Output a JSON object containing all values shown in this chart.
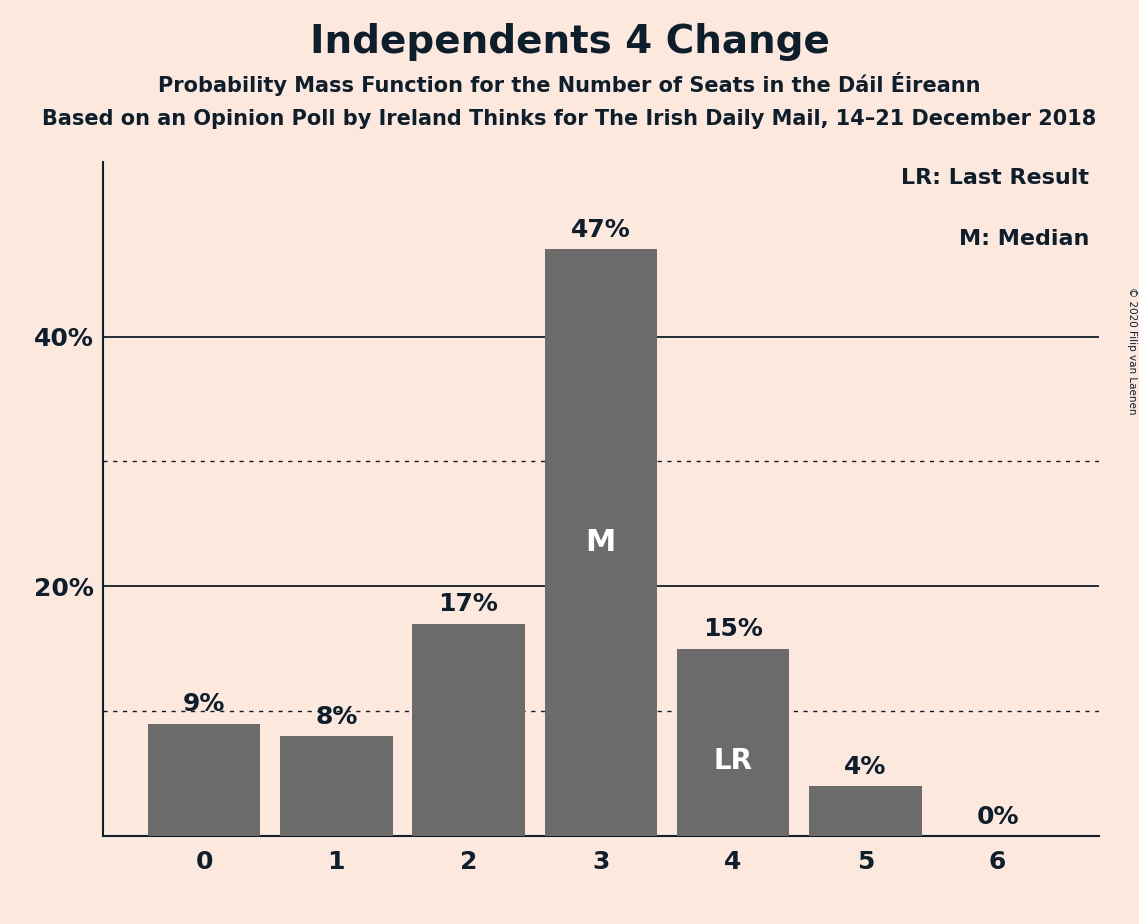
{
  "title": "Independents 4 Change",
  "subtitle1": "Probability Mass Function for the Number of Seats in the Dáil Éireann",
  "subtitle2": "Based on an Opinion Poll by Ireland Thinks for The Irish Daily Mail, 14–21 December 2018",
  "copyright": "© 2020 Filip van Laenen",
  "categories": [
    0,
    1,
    2,
    3,
    4,
    5,
    6
  ],
  "values": [
    9,
    8,
    17,
    47,
    15,
    4,
    0
  ],
  "bar_color": "#6b6b6b",
  "background_color": "#fde8de",
  "text_color": "#0d1f2d",
  "bar_label_color_outside": "#0d1f2d",
  "bar_label_color_inside": "#ffffff",
  "solid_gridlines": [
    20,
    40
  ],
  "dotted_gridlines": [
    10,
    30
  ],
  "ytick_positions": [
    20,
    40
  ],
  "ytick_labels": [
    "20%",
    "40%"
  ],
  "ylim": [
    0,
    54
  ],
  "median_bar": 3,
  "last_result_bar": 4,
  "legend_lr": "LR: Last Result",
  "legend_m": "M: Median",
  "title_fontsize": 28,
  "subtitle1_fontsize": 15,
  "subtitle2_fontsize": 15,
  "axis_label_fontsize": 18,
  "bar_label_fontsize": 18,
  "inside_label_fontsize": 22,
  "legend_fontsize": 16,
  "copyright_fontsize": 7.5
}
